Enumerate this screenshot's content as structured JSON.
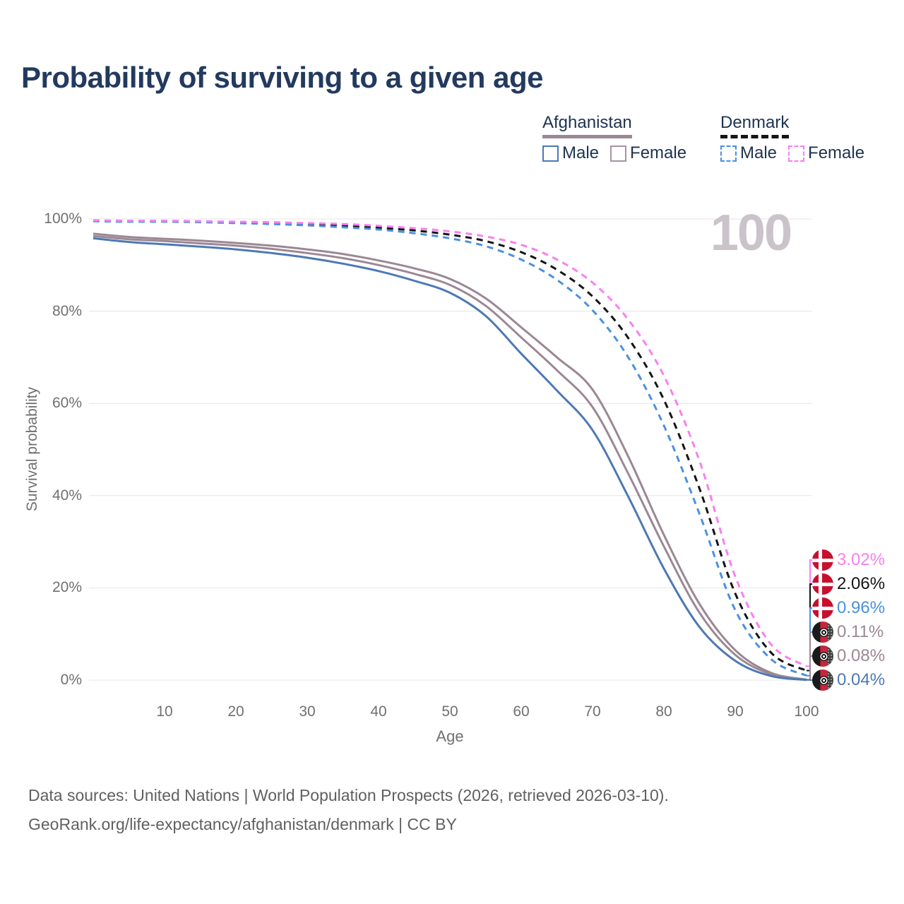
{
  "title": "Probability of surviving to a given age",
  "watermark": "100",
  "legend": {
    "groups": [
      {
        "country": "Afghanistan",
        "line_style": "solid",
        "underline_color": "#9b8894",
        "items": [
          {
            "label": "Male",
            "color": "#4c79b5"
          },
          {
            "label": "Female",
            "color": "#a893a2"
          }
        ]
      },
      {
        "country": "Denmark",
        "line_style": "dashed",
        "underline_color": "#141414",
        "items": [
          {
            "label": "Male",
            "color": "#4a90e2"
          },
          {
            "label": "Female",
            "color": "#f97ff0"
          }
        ]
      }
    ]
  },
  "chart_data": {
    "type": "line",
    "title": "Probability of surviving to a given age",
    "xlabel": "Age",
    "ylabel": "Survival probability",
    "xlim": [
      0,
      100
    ],
    "ylim": [
      0,
      100
    ],
    "x_ticks": [
      10,
      20,
      30,
      40,
      50,
      60,
      70,
      80,
      90,
      100
    ],
    "y_ticks": [
      0,
      20,
      40,
      60,
      80,
      100
    ],
    "y_tick_labels": [
      "0%",
      "20%",
      "40%",
      "60%",
      "80%",
      "100%"
    ],
    "grid": "horizontal",
    "legend_position": "top-right",
    "x": [
      0,
      5,
      10,
      15,
      20,
      25,
      30,
      35,
      40,
      45,
      50,
      55,
      60,
      65,
      70,
      75,
      80,
      85,
      90,
      95,
      100
    ],
    "series": [
      {
        "name": "Denmark Female",
        "country": "Denmark",
        "sex": "Female",
        "color": "#f97ff0",
        "dash": true,
        "end_label": "3.02%",
        "values": [
          99.7,
          99.6,
          99.6,
          99.5,
          99.4,
          99.3,
          99.1,
          98.9,
          98.5,
          98.0,
          97.3,
          96.2,
          94.4,
          91.2,
          86.2,
          78.2,
          66.0,
          47.5,
          22.5,
          7.8,
          3.02
        ]
      },
      {
        "name": "Denmark",
        "country": "Denmark",
        "sex": "Both",
        "color": "#141414",
        "dash": true,
        "end_label": "2.06%",
        "values": [
          99.6,
          99.5,
          99.5,
          99.4,
          99.3,
          99.1,
          98.9,
          98.6,
          98.1,
          97.5,
          96.6,
          95.2,
          92.8,
          89.0,
          83.2,
          74.2,
          60.8,
          41.5,
          18.8,
          6.0,
          2.06
        ]
      },
      {
        "name": "Denmark Male",
        "country": "Denmark",
        "sex": "Male",
        "color": "#4a90e2",
        "dash": true,
        "end_label": "0.96%",
        "values": [
          99.5,
          99.4,
          99.4,
          99.3,
          99.1,
          98.9,
          98.6,
          98.2,
          97.7,
          96.9,
          95.8,
          94.1,
          91.2,
          86.8,
          80.2,
          70.0,
          55.2,
          36.0,
          15.2,
          4.6,
          0.96
        ]
      },
      {
        "name": "Afghanistan Female",
        "country": "Afghanistan",
        "sex": "Female",
        "color": "#9b8894",
        "dash": false,
        "end_label": "0.11%",
        "values": [
          96.8,
          96.1,
          95.7,
          95.3,
          94.8,
          94.2,
          93.4,
          92.4,
          91.0,
          89.3,
          87.0,
          82.8,
          76.5,
          70.0,
          63.0,
          48.5,
          31.5,
          16.5,
          6.5,
          1.6,
          0.11
        ]
      },
      {
        "name": "Afghanistan",
        "country": "Afghanistan",
        "sex": "Both",
        "color": "#9b8894",
        "dash": false,
        "end_label": "0.08%",
        "values": [
          96.3,
          95.6,
          95.2,
          94.7,
          94.2,
          93.5,
          92.6,
          91.5,
          90.0,
          88.1,
          85.7,
          81.2,
          74.3,
          67.2,
          59.2,
          44.8,
          29.0,
          14.6,
          5.5,
          1.3,
          0.08
        ]
      },
      {
        "name": "Afghanistan Male",
        "country": "Afghanistan",
        "sex": "Male",
        "color": "#4c79b5",
        "dash": false,
        "end_label": "0.04%",
        "values": [
          95.8,
          95.0,
          94.5,
          94.0,
          93.4,
          92.6,
          91.6,
          90.3,
          88.7,
          86.6,
          84.0,
          79.0,
          70.8,
          62.8,
          54.2,
          39.8,
          24.2,
          11.5,
          4.2,
          0.9,
          0.04
        ]
      }
    ]
  },
  "footer": {
    "line1": "Data sources: United Nations | World Population Prospects (2026, retrieved 2026-03-10).",
    "line2": "GeoRank.org/life-expectancy/afghanistan/denmark | CC BY"
  }
}
